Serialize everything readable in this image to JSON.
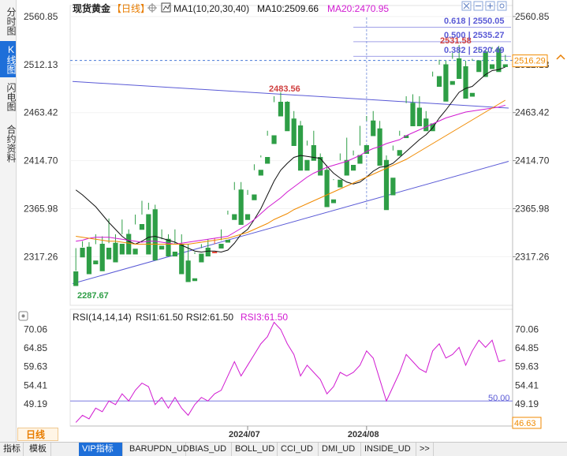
{
  "sidebar": {
    "tabs": [
      {
        "label": "分时图",
        "active": false
      },
      {
        "label": "K线图",
        "active": true
      },
      {
        "label": "闪电图",
        "active": false
      },
      {
        "label": "合约资料",
        "active": false
      }
    ]
  },
  "header": {
    "symbol": "现货黄金",
    "period_tag": "【日线】",
    "ma_label": "MA1(10,20,30,40)",
    "ma10_label": "MA10:2509.66",
    "ma20_label": "MA20:2470.95",
    "icons": [
      "crosshair-icon",
      "close-icon",
      "minus-icon",
      "plus-icon",
      "settings-icon",
      "expand-icon"
    ]
  },
  "rsi_header": {
    "title": "RSI(14,14,14)",
    "rsi1": "RSI1:61.50",
    "rsi2": "RSI2:61.50",
    "rsi3": "RSI3:61.50"
  },
  "annotations": {
    "high_price": "2531.58",
    "mid_high": "2483.56",
    "low_price": "2287.67",
    "current_price": "2516.29",
    "fib_0618": "0.618 | 2550.05",
    "fib_0500": "0.500 | 2535.27",
    "fib_0382": "0.382 | 2520.49",
    "rsi_last": "46.63",
    "rsi_mid_level": "50.00"
  },
  "bottom_bar": {
    "period": "日线",
    "tabs": [
      "指标",
      "模板",
      "VIP指标",
      "BARUPDN_UD",
      "BIAS_UD",
      "BOLL_UD",
      "CCI_UD",
      "DMI_UD",
      "INSIDE_UD",
      ">>"
    ],
    "active_tab": "VIP指标"
  },
  "colors": {
    "up": "#e74c3c",
    "down": "#2e9e46",
    "ma_black": "#111111",
    "ma_magenta": "#d11ad1",
    "ma_orange": "#f08a00",
    "trendline": "#5a5ad6",
    "rsi": "#d11ad1"
  },
  "chart_data": [
    {
      "type": "candlestick",
      "title": "现货黄金",
      "ylim": [
        2268.0,
        2572.0
      ],
      "y_ticks": [
        2560.85,
        2512.13,
        2463.42,
        2414.7,
        2365.98,
        2317.26
      ],
      "x_ticks": [
        "2024/07",
        "2024/08"
      ],
      "candles": [
        [
          2302,
          2326,
          2303,
          2288
        ],
        [
          2326,
          2333,
          2327,
          2317
        ],
        [
          2327,
          2332,
          2313,
          2300
        ],
        [
          2313,
          2340,
          2330,
          2310
        ],
        [
          2330,
          2338,
          2326,
          2303
        ],
        [
          2326,
          2356,
          2331,
          2315
        ],
        [
          2331,
          2340,
          2330,
          2312
        ],
        [
          2330,
          2355,
          2340,
          2320
        ],
        [
          2340,
          2345,
          2325,
          2320
        ],
        [
          2325,
          2360,
          2350,
          2320
        ],
        [
          2350,
          2374,
          2360,
          2345
        ],
        [
          2360,
          2372,
          2365,
          2320
        ],
        [
          2365,
          2370,
          2328,
          2314
        ],
        [
          2328,
          2345,
          2335,
          2325
        ],
        [
          2335,
          2340,
          2322,
          2318
        ],
        [
          2322,
          2345,
          2330,
          2318
        ],
        [
          2330,
          2340,
          2313,
          2300
        ],
        [
          2313,
          2330,
          2295,
          2292
        ],
        [
          2295,
          2322,
          2320,
          2293
        ],
        [
          2320,
          2330,
          2326,
          2312
        ],
        [
          2326,
          2335,
          2322,
          2318
        ],
        [
          2322,
          2336,
          2330,
          2322
        ],
        [
          2330,
          2345,
          2334,
          2326
        ],
        [
          2334,
          2364,
          2360,
          2332
        ],
        [
          2360,
          2393,
          2385,
          2355
        ],
        [
          2385,
          2393,
          2360,
          2350
        ],
        [
          2360,
          2385,
          2380,
          2355
        ],
        [
          2380,
          2411,
          2405,
          2375
        ],
        [
          2405,
          2420,
          2418,
          2400
        ],
        [
          2418,
          2445,
          2440,
          2412
        ],
        [
          2440,
          2480,
          2474,
          2432
        ],
        [
          2474,
          2484,
          2474,
          2460
        ],
        [
          2474,
          2475,
          2457,
          2445
        ],
        [
          2457,
          2465,
          2450,
          2430
        ],
        [
          2450,
          2455,
          2415,
          2405
        ],
        [
          2415,
          2435,
          2430,
          2405
        ],
        [
          2430,
          2445,
          2418,
          2415
        ],
        [
          2418,
          2422,
          2405,
          2400
        ],
        [
          2405,
          2410,
          2375,
          2368
        ],
        [
          2375,
          2396,
          2395,
          2372
        ],
        [
          2395,
          2422,
          2415,
          2388
        ],
        [
          2415,
          2438,
          2410,
          2400
        ],
        [
          2410,
          2425,
          2420,
          2405
        ],
        [
          2420,
          2450,
          2430,
          2412
        ],
        [
          2430,
          2460,
          2455,
          2422
        ],
        [
          2455,
          2465,
          2447,
          2440
        ],
        [
          2447,
          2455,
          2415,
          2410
        ],
        [
          2415,
          2420,
          2397,
          2365
        ],
        [
          2397,
          2430,
          2425,
          2380
        ],
        [
          2425,
          2445,
          2440,
          2420
        ],
        [
          2440,
          2480,
          2473,
          2438
        ],
        [
          2473,
          2482,
          2468,
          2450
        ],
        [
          2468,
          2480,
          2457,
          2450
        ],
        [
          2457,
          2465,
          2452,
          2445
        ],
        [
          2452,
          2505,
          2500,
          2445
        ],
        [
          2500,
          2517,
          2512,
          2490
        ],
        [
          2512,
          2516,
          2495,
          2475
        ],
        [
          2495,
          2524,
          2518,
          2492
        ],
        [
          2518,
          2532,
          2510,
          2498
        ],
        [
          2510,
          2516,
          2483,
          2478
        ],
        [
          2483,
          2518,
          2516,
          2480
        ],
        [
          2516,
          2530,
          2525,
          2505
        ],
        [
          2525,
          2527,
          2512,
          2500
        ],
        [
          2512,
          2530,
          2528,
          2508
        ],
        [
          2528,
          2531,
          2512,
          2505
        ],
        [
          2512,
          2522,
          2516,
          2510
        ]
      ],
      "series": [
        {
          "name": "MA10",
          "values": [
            2385,
            2380,
            2374,
            2368,
            2360,
            2352,
            2345,
            2338,
            2333,
            2330,
            2333,
            2337,
            2338,
            2336,
            2334,
            2332,
            2329,
            2326,
            2323,
            2322,
            2323,
            2323,
            2322,
            2324,
            2331,
            2340,
            2345,
            2355,
            2366,
            2380,
            2394,
            2405,
            2412,
            2418,
            2420,
            2419,
            2418,
            2417,
            2409,
            2402,
            2397,
            2393,
            2391,
            2393,
            2398,
            2404,
            2408,
            2409,
            2412,
            2418,
            2424,
            2430,
            2436,
            2441,
            2448,
            2458,
            2466,
            2475,
            2484,
            2488,
            2490,
            2496,
            2502,
            2506,
            2507,
            2509.66
          ]
        },
        {
          "name": "MA20",
          "values": [
            2333,
            2334,
            2336,
            2337,
            2337,
            2337,
            2336,
            2335,
            2334,
            2333,
            2332,
            2333,
            2333,
            2332,
            2331,
            2330,
            2331,
            2332,
            2333,
            2334,
            2335,
            2336,
            2337,
            2338,
            2342,
            2346,
            2350,
            2355,
            2361,
            2367,
            2372,
            2377,
            2383,
            2388,
            2393,
            2398,
            2402,
            2405,
            2408,
            2410,
            2412,
            2414,
            2417,
            2420,
            2424,
            2427,
            2429,
            2432,
            2434,
            2436,
            2440,
            2443,
            2446,
            2449,
            2452,
            2455,
            2458,
            2460,
            2462,
            2464,
            2465,
            2466,
            2467,
            2468,
            2469,
            2470.95
          ]
        },
        {
          "name": "MA30",
          "values": [
            2338,
            2337,
            2336,
            2335,
            2334,
            2333,
            2333,
            2332,
            2331,
            2330,
            2330,
            2330,
            2330,
            2330,
            2330,
            2330,
            2330,
            2330,
            2331,
            2332,
            2333,
            2334,
            2335,
            2336,
            2338,
            2340,
            2342,
            2345,
            2348,
            2351,
            2355,
            2358,
            2361,
            2365,
            2368,
            2371,
            2374,
            2377,
            2380,
            2383,
            2386,
            2389,
            2392,
            2395,
            2398,
            2401,
            2404,
            2407,
            2410,
            2413,
            2416,
            2420,
            2424,
            2428,
            2432,
            2436,
            2440,
            2444,
            2448,
            2452,
            2456,
            2460,
            2464,
            2468,
            2472,
            2476
          ]
        }
      ],
      "trendlines": [
        {
          "from": [
            0,
            2290
          ],
          "to": [
            65,
            2414
          ]
        },
        {
          "from": [
            0,
            2495
          ],
          "to": [
            65,
            2468
          ]
        }
      ],
      "fib_levels": [
        2550.05,
        2535.27,
        2520.49
      ],
      "current_price": 2516.29
    },
    {
      "type": "line",
      "title": "RSI(14,14,14)",
      "ylim": [
        43.0,
        73.0
      ],
      "y_ticks": [
        70.06,
        64.85,
        59.63,
        54.41,
        49.19,
        46.63
      ],
      "reference_line": 50.0,
      "series": [
        {
          "name": "RSI1",
          "values": [
            44,
            46,
            45,
            48,
            47,
            50,
            49,
            52,
            50,
            53,
            55,
            54,
            49,
            51,
            48,
            51,
            48,
            46,
            49,
            51,
            50,
            52,
            53,
            57,
            61,
            57,
            60,
            63,
            66,
            68,
            72,
            70,
            66,
            63,
            57,
            60,
            58,
            56,
            52,
            54,
            58,
            57,
            58,
            60,
            64,
            62,
            56,
            50,
            54,
            58,
            63,
            61,
            59,
            58,
            64,
            66,
            62,
            63,
            65,
            60,
            64,
            67,
            65,
            67,
            61,
            61.5
          ]
        }
      ]
    }
  ]
}
